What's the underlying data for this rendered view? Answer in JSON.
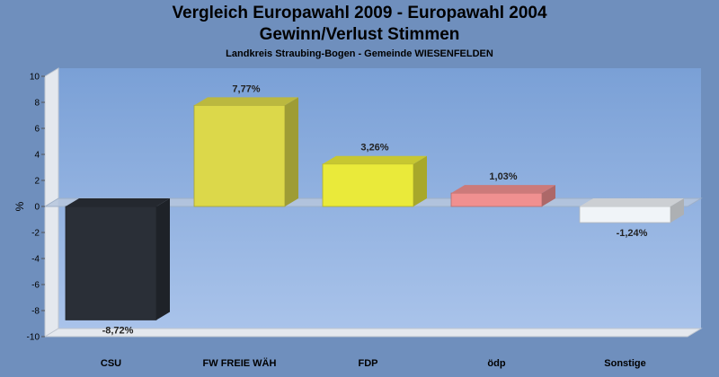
{
  "header": {
    "title": "Vergleich Europawahl 2009 - Europawahl 2004",
    "subtitle": "Gewinn/Verlust Stimmen",
    "region": "Landkreis Straubing-Bogen - Gemeinde WIESENFELDEN"
  },
  "chart_data": {
    "type": "bar",
    "title": "Vergleich Europawahl 2009 - Europawahl 2004",
    "subtitle": "Gewinn/Verlust Stimmen",
    "ylabel": "%",
    "ylim": [
      -10,
      10
    ],
    "yticks": [
      10,
      8,
      6,
      4,
      2,
      0,
      -2,
      -4,
      -6,
      -8,
      -10
    ],
    "grid": false,
    "categories": [
      "CSU",
      "FW FREIE WÄH",
      "FDP",
      "ödp",
      "Sonstige"
    ],
    "values": [
      -8.72,
      7.77,
      3.26,
      1.03,
      -1.24
    ],
    "value_labels": [
      "-8,72%",
      "7,77%",
      "3,26%",
      "1,03%",
      "-1,24%"
    ],
    "colors": [
      "#2a2f37",
      "#dcd84a",
      "#eaea3a",
      "#f09090",
      "#f0f4f8"
    ]
  }
}
